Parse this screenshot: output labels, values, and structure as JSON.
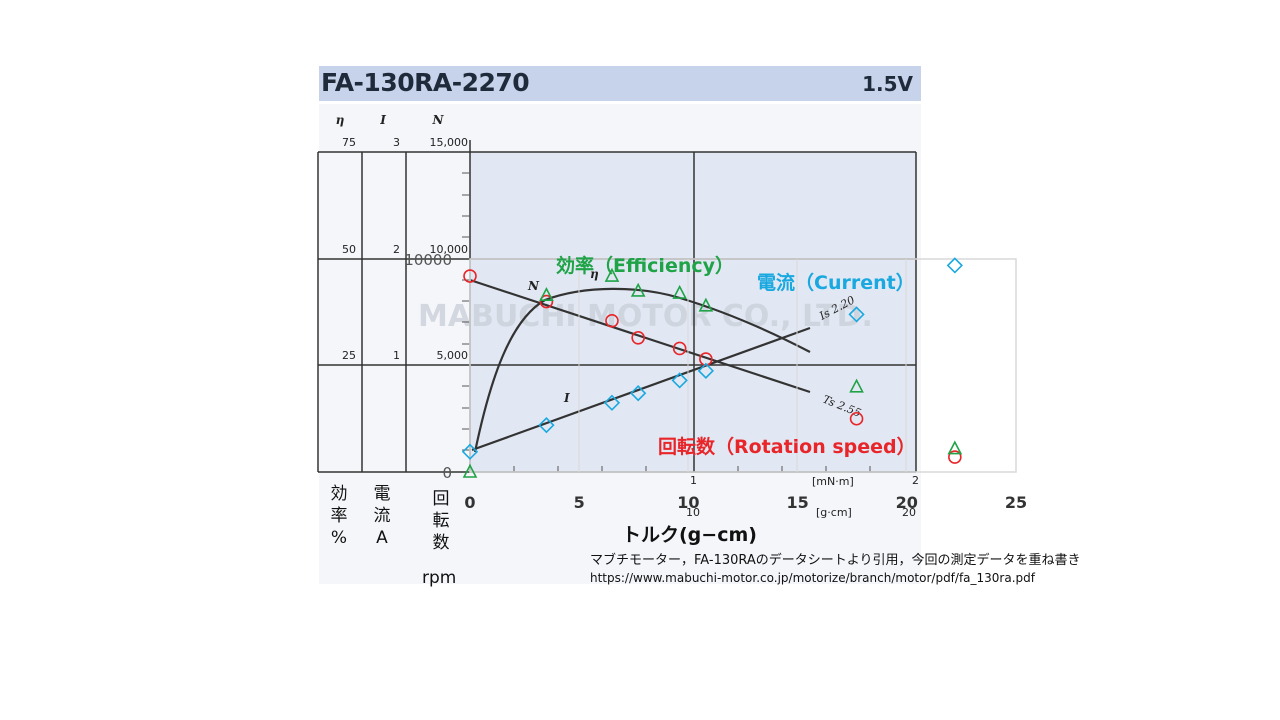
{
  "datasheet": {
    "model": "FA-130RA-2270",
    "voltage": "1.5V",
    "watermark": "MABUCHI MOTOR CO., LTD.",
    "col_headers": {
      "eta": "η",
      "current": "I",
      "speed": "N"
    },
    "eta_ticks": [
      "75",
      "50",
      "25"
    ],
    "current_ticks": [
      "3",
      "2",
      "1"
    ],
    "speed_ticks": [
      "15,000",
      "10,000",
      "5,000",
      "0"
    ],
    "unit_mnm": "[mN·m]",
    "unit_gcm": "[g·cm]",
    "mnm_ticks": [
      "1",
      "2"
    ],
    "gcm_ticks": [
      "10",
      "20"
    ],
    "curve_labels": {
      "N": "N",
      "eta": "η",
      "I": "I",
      "Is": "Is 2.20",
      "Ts": "Ts 2.55"
    }
  },
  "axis_titles": {
    "eff": [
      "効",
      "率",
      "%"
    ],
    "cur": [
      "電",
      "流",
      "A"
    ],
    "rot": [
      "回",
      "転",
      "数"
    ],
    "rot_unit": "rpm"
  },
  "series_labels": {
    "efficiency": "効率（Efficiency）",
    "current": "電流（Current）",
    "rotation": "回転数（Rotation speed）"
  },
  "note": {
    "line1": "マブチモーター，FA-130RAのデータシートより引用，今回の測定データを重ね書き",
    "line2": "https://www.mabuchi-motor.co.jp/motorize/branch/motor/pdf/fa_130ra.pdf"
  },
  "colors": {
    "efficiency": "#1fa347",
    "current": "#19a8e0",
    "rotation": "#e8262a",
    "banner": "#c6d3ea",
    "plot_bg": "#e2e8f3"
  },
  "chart_data": {
    "type": "scatter",
    "xlabel": "トルク(g−cm)",
    "x_ticks": [
      "0",
      "5",
      "10",
      "15",
      "20",
      "25"
    ],
    "y_ticks": [
      "10000",
      "0"
    ],
    "xlim": [
      0,
      25
    ],
    "ylim": [
      0,
      10000
    ],
    "series": [
      {
        "name": "回転数（Rotation speed）",
        "marker": "circle",
        "points": [
          [
            0,
            9200
          ],
          [
            3.5,
            8000
          ],
          [
            6.5,
            7100
          ],
          [
            7.7,
            6300
          ],
          [
            9.6,
            5800
          ],
          [
            10.8,
            5300
          ],
          [
            17.7,
            2500
          ],
          [
            22.2,
            700
          ]
        ]
      },
      {
        "name": "電流（Current）",
        "marker": "diamond",
        "points": [
          [
            0,
            950
          ],
          [
            3.5,
            2200
          ],
          [
            6.5,
            3250
          ],
          [
            7.7,
            3700
          ],
          [
            9.6,
            4300
          ],
          [
            10.8,
            4750
          ],
          [
            17.7,
            7400
          ],
          [
            22.2,
            9700
          ]
        ]
      },
      {
        "name": "効率（Efficiency）",
        "marker": "triangle",
        "points": [
          [
            0,
            0
          ],
          [
            3.5,
            8300
          ],
          [
            6.5,
            9200
          ],
          [
            7.7,
            8500
          ],
          [
            9.6,
            8400
          ],
          [
            10.8,
            7800
          ],
          [
            17.7,
            4000
          ],
          [
            22.2,
            1100
          ]
        ]
      }
    ]
  }
}
